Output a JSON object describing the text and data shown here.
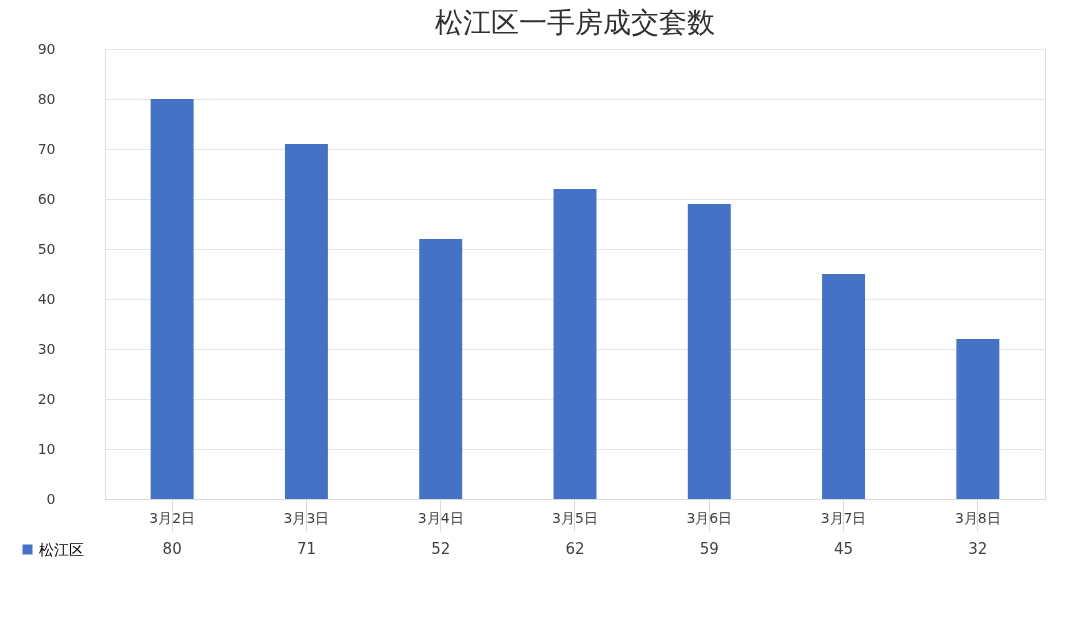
{
  "chart_data": {
    "type": "bar",
    "title": "松江区一手房成交套数",
    "categories": [
      "3月2日",
      "3月3日",
      "3月4日",
      "3月5日",
      "3月6日",
      "3月7日",
      "3月8日"
    ],
    "series": [
      {
        "name": "松江区",
        "color": "#4472c4",
        "values": [
          80,
          71,
          52,
          62,
          59,
          45,
          32
        ]
      }
    ],
    "ylim": [
      0,
      90
    ],
    "yticks": [
      0,
      10,
      20,
      30,
      40,
      50,
      60,
      70,
      80,
      90
    ],
    "grid": "y",
    "data_labels": true,
    "legend": "bottom left"
  }
}
